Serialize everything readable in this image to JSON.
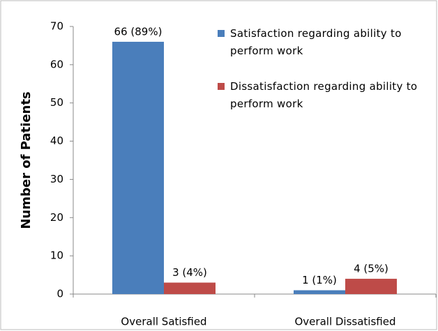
{
  "chart_data": {
    "type": "bar",
    "y_label": "Number of Patients",
    "categories": [
      "Overall Satisfied",
      "Overall Dissatisfied"
    ],
    "series": [
      {
        "name": "Satisfaction regarding ability to perform work",
        "color": "#4a7ebb",
        "values": [
          66,
          1
        ],
        "value_labels": [
          "66 (89%)",
          "1 (1%)"
        ]
      },
      {
        "name": "Dissatisfaction regarding ability to perform work",
        "color": "#be4b48",
        "values": [
          3,
          4
        ],
        "value_labels": [
          "3 (4%)",
          "4 (5%)"
        ]
      }
    ],
    "ylim": [
      0,
      70
    ],
    "yticks": [
      0,
      10,
      20,
      30,
      40,
      50,
      60,
      70
    ],
    "grid": false,
    "legend": "top-right"
  }
}
